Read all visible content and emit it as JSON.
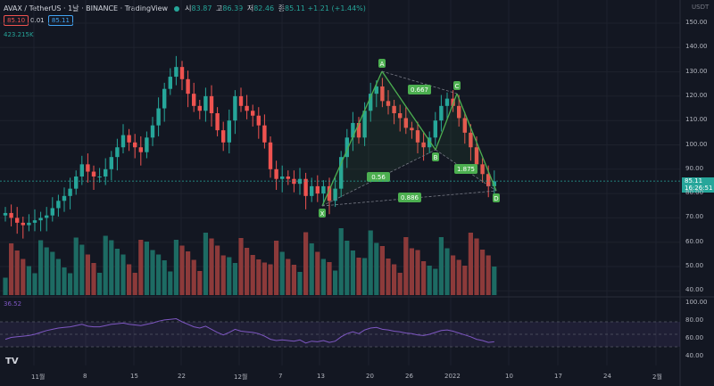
{
  "header": {
    "title": "AVAX / TetherUS · 1날 · BINANCE · TradingView",
    "open_label": "시",
    "open": "83.87",
    "high_label": "고",
    "high": "86.39",
    "low_label": "저",
    "low": "82.46",
    "close_label": "종",
    "close": "85.11",
    "change": "+1.21 (+1.44%)"
  },
  "controls": {
    "sell": "85.10",
    "spread": "0.01",
    "buy": "85.11"
  },
  "volume_label": "423.215K",
  "rsi_label": "36.52",
  "currency": "USDT",
  "price_tag": {
    "price": "85.11",
    "countdown": "16:26:51"
  },
  "price_axis": [
    "150.00",
    "140.00",
    "130.00",
    "120.00",
    "110.00",
    "100.00",
    "90.00",
    "80.00",
    "70.00",
    "60.00",
    "50.00",
    "40.00"
  ],
  "rsi_axis": [
    "100.00",
    "80.00",
    "60.00",
    "40.00"
  ],
  "time_axis": [
    "11월",
    "8",
    "15",
    "22",
    "12월",
    "7",
    "13",
    "20",
    "26",
    "2022",
    "10",
    "17",
    "24",
    "2월"
  ],
  "pattern": {
    "points": [
      "X",
      "A",
      "B",
      "C",
      "D"
    ],
    "ratios": [
      "0.667",
      "0.56",
      "1.875",
      "0.886"
    ],
    "color": "#4caf50"
  },
  "colors": {
    "up": "#26a69a",
    "down": "#ef5350",
    "rsi": "#7e57c2",
    "background": "#131722"
  },
  "icons": {
    "logo": "tradingview-logo-icon"
  }
}
